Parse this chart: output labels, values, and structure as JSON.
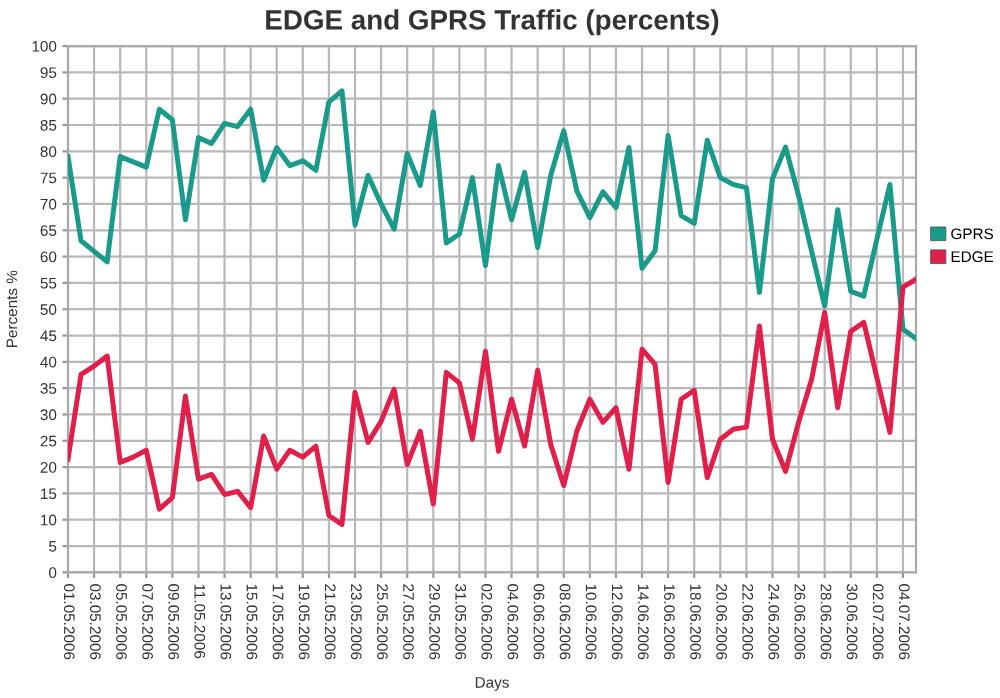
{
  "chart_data": {
    "type": "line",
    "title": "EDGE and GPRS Traffic (percents)",
    "xlabel": "Days",
    "ylabel": "Percents %",
    "categories": [
      "01.05.2006",
      null,
      "03.05.2006",
      null,
      "05.05.2006",
      null,
      "07.05.2006",
      null,
      "09.05.2006",
      null,
      "11.05.2006",
      null,
      "13.05.2006",
      null,
      "15.05.2006",
      null,
      "17.05.2006",
      null,
      "19.05.2006",
      null,
      "21.05.2006",
      null,
      "23.05.2006",
      null,
      "25.05.2006",
      null,
      "27.05.2006",
      null,
      "29.05.2006",
      null,
      "31.05.2006",
      null,
      "02.06.2006",
      null,
      "04.06.2006",
      null,
      "06.06.2006",
      null,
      "08.06.2006",
      null,
      "10.06.2006",
      null,
      "12.06.2006",
      null,
      "14.06.2006",
      null,
      "16.06.2006",
      null,
      "18.06.2006",
      null,
      "20.06.2006",
      null,
      "22.06.2006",
      null,
      "24.06.2006",
      null,
      "26.06.2006",
      null,
      "28.06.2006",
      null,
      "30.06.2006",
      null,
      "02.07.2006",
      null,
      "04.07.2006",
      null
    ],
    "series": [
      {
        "name": "GPRS",
        "color": "#1a9a8a",
        "values": [
          79,
          63,
          61,
          59,
          79,
          78,
          77,
          88,
          86,
          67,
          82.6,
          81.5,
          85.3,
          84.7,
          88,
          74.5,
          80.7,
          77.3,
          78.2,
          76.4,
          89.4,
          91.5,
          66,
          75.4,
          70,
          65.2,
          79.6,
          73.5,
          87.5,
          62.6,
          64.3,
          75,
          58.3,
          77.3,
          67,
          76,
          61.7,
          75.4,
          83.9,
          72.5,
          67.4,
          72.3,
          69.3,
          80.7,
          57.8,
          61.1,
          83,
          67.8,
          66.3,
          82.1,
          75,
          73.7,
          73.1,
          53.2,
          74.8,
          80.8,
          71.6,
          61,
          50.6,
          68.9,
          53.4,
          52.5,
          63.3,
          73.7,
          46.2,
          44.4
        ]
      },
      {
        "name": "EDGE",
        "color": "#e0204a",
        "values": [
          21.5,
          37.6,
          39.2,
          41.1,
          20.9,
          21.9,
          23.2,
          12,
          14.2,
          33.5,
          17.7,
          18.6,
          14.8,
          15.4,
          12.3,
          25.9,
          19.6,
          23.2,
          21.9,
          24,
          10.8,
          9.1,
          34.2,
          24.7,
          28.7,
          34.8,
          20.5,
          26.8,
          13,
          38,
          36,
          25.3,
          42,
          23,
          32.9,
          24,
          38.4,
          24.3,
          16.5,
          26.8,
          32.9,
          28.5,
          31.3,
          19.6,
          42.4,
          39.5,
          17.1,
          32.9,
          34.6,
          18,
          25.3,
          27.2,
          27.6,
          46.8,
          25.3,
          19.2,
          28.5,
          36.7,
          49.4,
          31.3,
          45.8,
          47.5,
          37,
          26.6,
          54.2,
          55.7
        ]
      }
    ],
    "ylim": [
      0,
      100
    ],
    "yticks": [
      0,
      5,
      10,
      15,
      20,
      25,
      30,
      35,
      40,
      45,
      50,
      55,
      60,
      65,
      70,
      75,
      80,
      85,
      90,
      95,
      100
    ],
    "grid": true,
    "legend": "right",
    "marker": "none",
    "line_style": "solid"
  }
}
